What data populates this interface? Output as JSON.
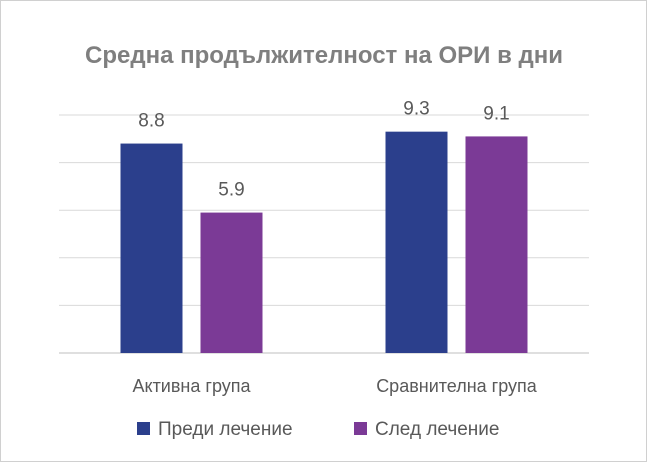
{
  "chart_data": {
    "type": "bar",
    "title": "Средна продължителност на ОРИ в дни",
    "categories": [
      "Активна група",
      "Сравнителна група"
    ],
    "series": [
      {
        "name": "Преди лечение",
        "values": [
          8.8,
          9.3
        ],
        "labels": [
          "8.8",
          "9.3"
        ],
        "color": "#2b3f8c"
      },
      {
        "name": "След лечение",
        "values": [
          5.9,
          9.1
        ],
        "labels": [
          "5.9",
          "9.1"
        ],
        "color": "#7b3a96"
      }
    ],
    "xlabel": "",
    "ylabel": "",
    "ylim": [
      0,
      10
    ],
    "ytick_step": 2,
    "grid": true,
    "legend": "bottom"
  }
}
